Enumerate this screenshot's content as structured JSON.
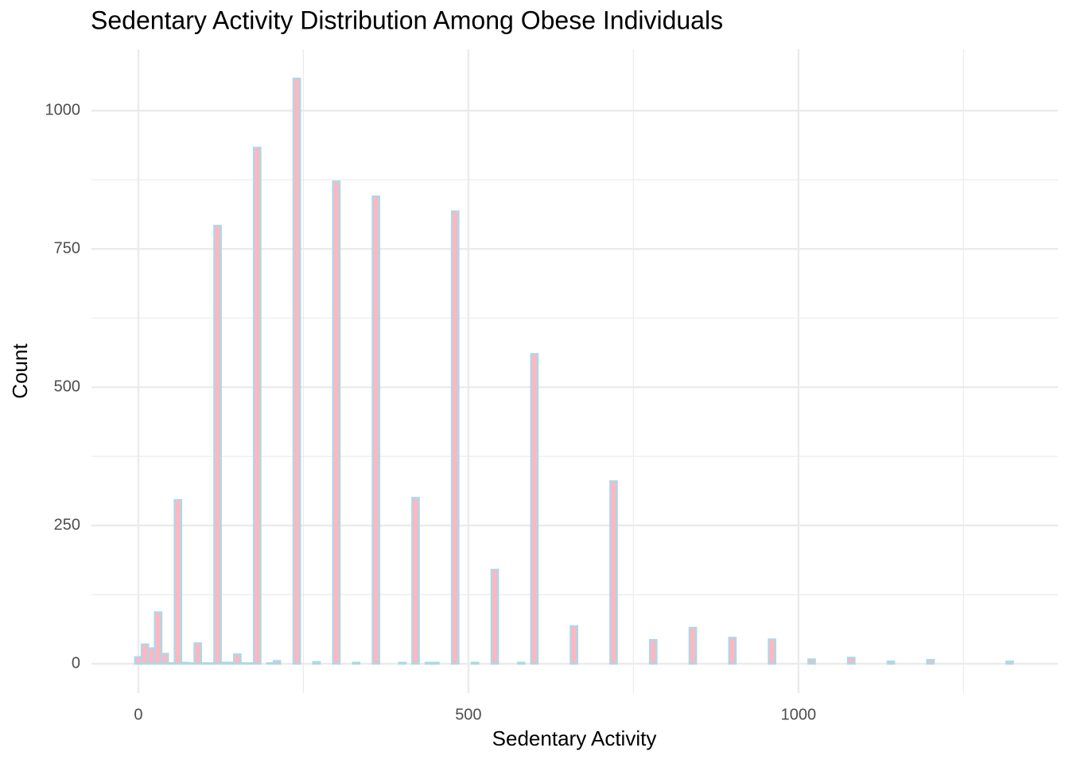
{
  "chart_data": {
    "type": "histogram",
    "title": "Sedentary Activity Distribution Among Obese Individuals",
    "x_label": "Sedentary Activity",
    "y_label": "Count",
    "fill": "#ffb6c1",
    "edge_color": "#add8e6",
    "bins": [
      -5,
      5,
      15,
      25,
      35,
      45,
      55,
      65,
      75,
      85,
      95,
      105,
      115,
      125,
      135,
      145,
      155,
      165,
      175,
      185,
      195,
      205,
      215,
      225,
      235,
      245,
      255,
      265,
      275,
      285,
      295,
      305,
      315,
      325,
      335,
      345,
      355,
      365,
      375,
      385,
      395,
      405,
      415,
      425,
      435,
      445,
      455,
      465,
      475,
      485,
      495,
      505,
      515,
      525,
      535,
      545,
      555,
      565,
      575,
      585,
      595,
      605,
      615,
      625,
      635,
      645,
      655,
      665,
      675,
      685,
      695,
      705,
      715,
      725,
      735,
      745,
      755,
      765,
      775,
      785,
      795,
      805,
      815,
      825,
      835,
      845,
      855,
      865,
      875,
      885,
      895,
      905,
      915,
      925,
      935,
      945,
      955,
      965,
      975,
      985,
      995,
      1005,
      1015,
      1025,
      1035,
      1045,
      1055,
      1065,
      1075,
      1085,
      1095,
      1105,
      1115,
      1125,
      1135,
      1145,
      1155,
      1165,
      1175,
      1185,
      1195,
      1205,
      1215,
      1225,
      1235,
      1245,
      1255,
      1265,
      1275,
      1285,
      1295,
      1305,
      1315,
      1325
    ],
    "counts": [
      12,
      35,
      28,
      93,
      18,
      1,
      296,
      2,
      1,
      37,
      1,
      1,
      792,
      2,
      2,
      17,
      1,
      1,
      933,
      0,
      1,
      5,
      0,
      0,
      1058,
      0,
      0,
      3,
      0,
      0,
      872,
      0,
      0,
      2,
      0,
      0,
      845,
      0,
      0,
      0,
      2,
      0,
      300,
      0,
      2,
      2,
      0,
      0,
      818,
      0,
      0,
      2,
      0,
      0,
      170,
      0,
      0,
      0,
      2,
      0,
      560,
      0,
      0,
      0,
      0,
      0,
      68,
      0,
      0,
      0,
      0,
      0,
      330,
      0,
      0,
      0,
      0,
      0,
      43,
      0,
      0,
      0,
      0,
      0,
      65,
      0,
      0,
      0,
      0,
      0,
      47,
      0,
      0,
      0,
      0,
      0,
      44,
      0,
      0,
      0,
      0,
      0,
      8,
      0,
      0,
      0,
      0,
      0,
      11,
      0,
      0,
      0,
      0,
      0,
      4,
      0,
      0,
      0,
      0,
      0,
      7,
      0,
      0,
      0,
      0,
      0,
      0,
      0,
      0,
      0,
      0,
      0,
      4
    ],
    "xlim": [
      -71,
      1393
    ],
    "ylim": [
      -53,
      1111
    ],
    "xticks": [
      0,
      500,
      1000
    ],
    "yticks": [
      0,
      250,
      500,
      750,
      1000
    ],
    "x_minor_ticks": [
      250,
      750,
      1250
    ],
    "y_minor_ticks": [
      125,
      375,
      625,
      875
    ],
    "grid": true
  }
}
